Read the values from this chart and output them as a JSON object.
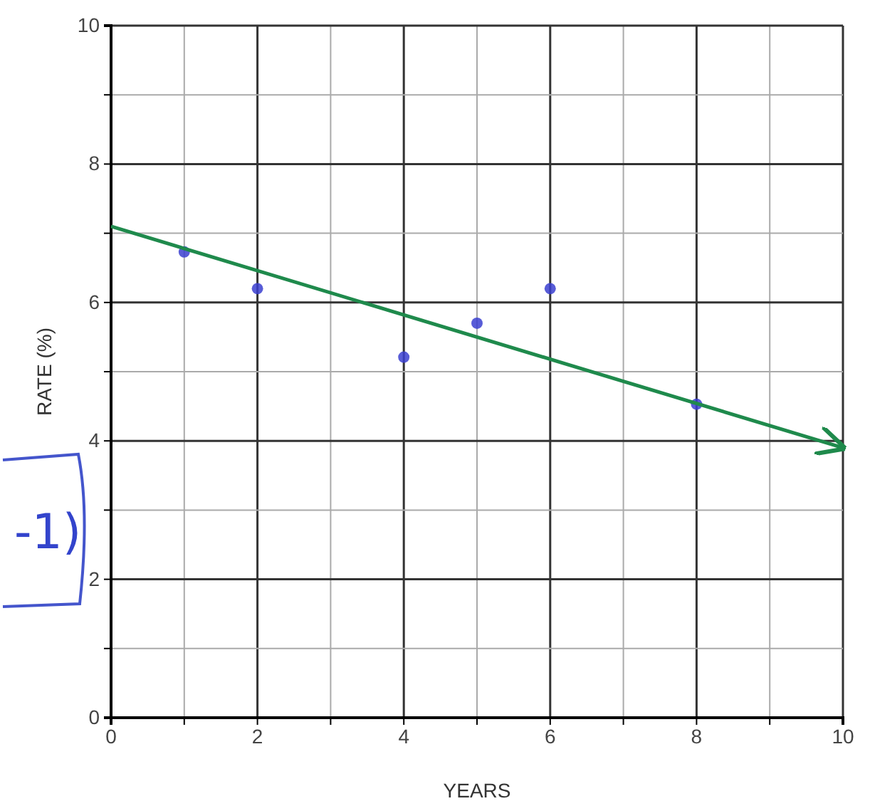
{
  "chart_data": {
    "type": "scatter",
    "xlabel": "YEARS",
    "ylabel": "RATE (%)",
    "xlim": [
      0,
      10
    ],
    "ylim": [
      0,
      10
    ],
    "xticks": [
      0,
      {
        "value": 1,
        "label": null
      },
      2,
      {
        "value": 3,
        "label": null
      },
      4,
      {
        "value": 5,
        "label": null
      },
      6,
      {
        "value": 7,
        "label": null
      },
      8,
      {
        "value": 9,
        "label": null
      },
      10
    ],
    "yticks": [
      0,
      {
        "value": 1,
        "label": null
      },
      2,
      {
        "value": 3,
        "label": null
      },
      4,
      {
        "value": 5,
        "label": null
      },
      6,
      {
        "value": 7,
        "label": null
      },
      8,
      {
        "value": 9,
        "label": null
      },
      10
    ],
    "grid": true,
    "series": [
      {
        "marker": "circle",
        "color": "#3b3fd0",
        "x": [
          1,
          2,
          4,
          5,
          6,
          8
        ],
        "values": [
          6.73,
          6.2,
          5.21,
          5.7,
          6.2,
          4.53
        ]
      },
      {
        "type": "line",
        "marker": "none",
        "color": "#1f8a4c",
        "x": [
          0,
          10
        ],
        "values": [
          7.1,
          3.9
        ]
      }
    ],
    "annotations": [
      "-1)"
    ]
  }
}
